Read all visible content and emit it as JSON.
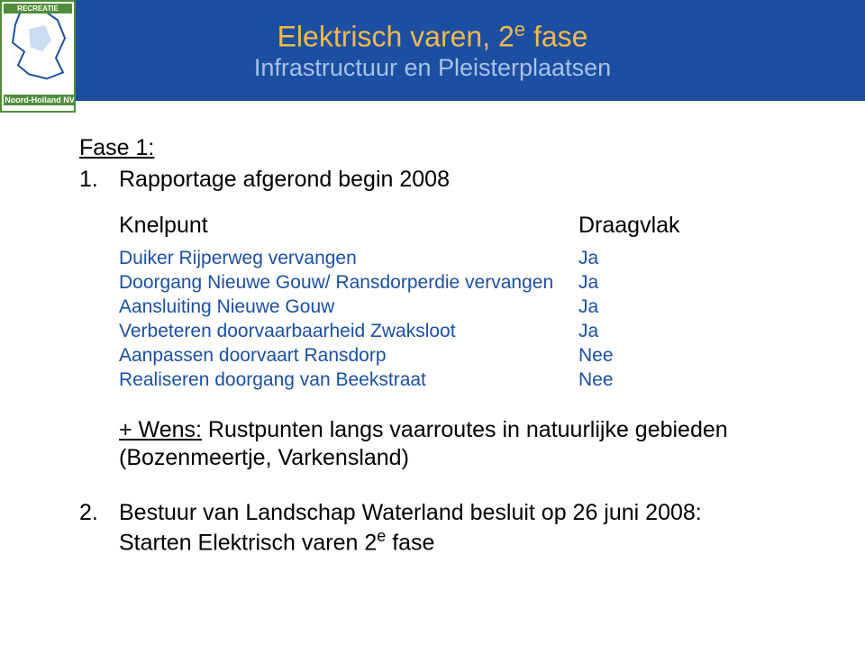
{
  "colors": {
    "header_bg": "#1c4fa1",
    "title_color": "#f5b94b",
    "subtitle_color": "#a8c3e8",
    "body_color": "#000000",
    "row_color": "#1c4fa1",
    "logo_green": "#4f8d3a"
  },
  "header": {
    "title_pre": "Elektrisch varen, 2",
    "title_sup": "e",
    "title_post": " fase",
    "subtitle": "Infrastructuur en Pleisterplaatsen"
  },
  "logo": {
    "top_label": "RECREATIE",
    "bottom_label": "Noord-Holland NV"
  },
  "fase_heading": "Fase 1:",
  "item1": {
    "num": "1.",
    "text": "Rapportage afgerond begin 2008"
  },
  "table": {
    "header_a": "Knelpunt",
    "header_b": "Draagvlak",
    "rows": [
      {
        "a": "Duiker Rijperweg vervangen",
        "b": "Ja"
      },
      {
        "a": "Doorgang Nieuwe Gouw/ Ransdorperdie vervangen",
        "b": "Ja"
      },
      {
        "a": "Aansluiting Nieuwe Gouw",
        "b": "Ja"
      },
      {
        "a": "Verbeteren doorvaarbaarheid Zwaksloot",
        "b": "Ja"
      },
      {
        "a": "Aanpassen doorvaart Ransdorp",
        "b": "Nee"
      },
      {
        "a": "Realiseren doorgang van Beekstraat",
        "b": "Nee"
      }
    ]
  },
  "wens": {
    "lead": "+ Wens:",
    "rest": " Rustpunten langs vaarroutes in natuurlijke gebieden (Bozenmeertje, Varkensland)"
  },
  "item2": {
    "num": "2.",
    "line1": "Bestuur van Landschap Waterland besluit op 26 juni 2008:",
    "line2_pre": "Starten Elektrisch varen 2",
    "line2_sup": "e",
    "line2_post": " fase"
  }
}
